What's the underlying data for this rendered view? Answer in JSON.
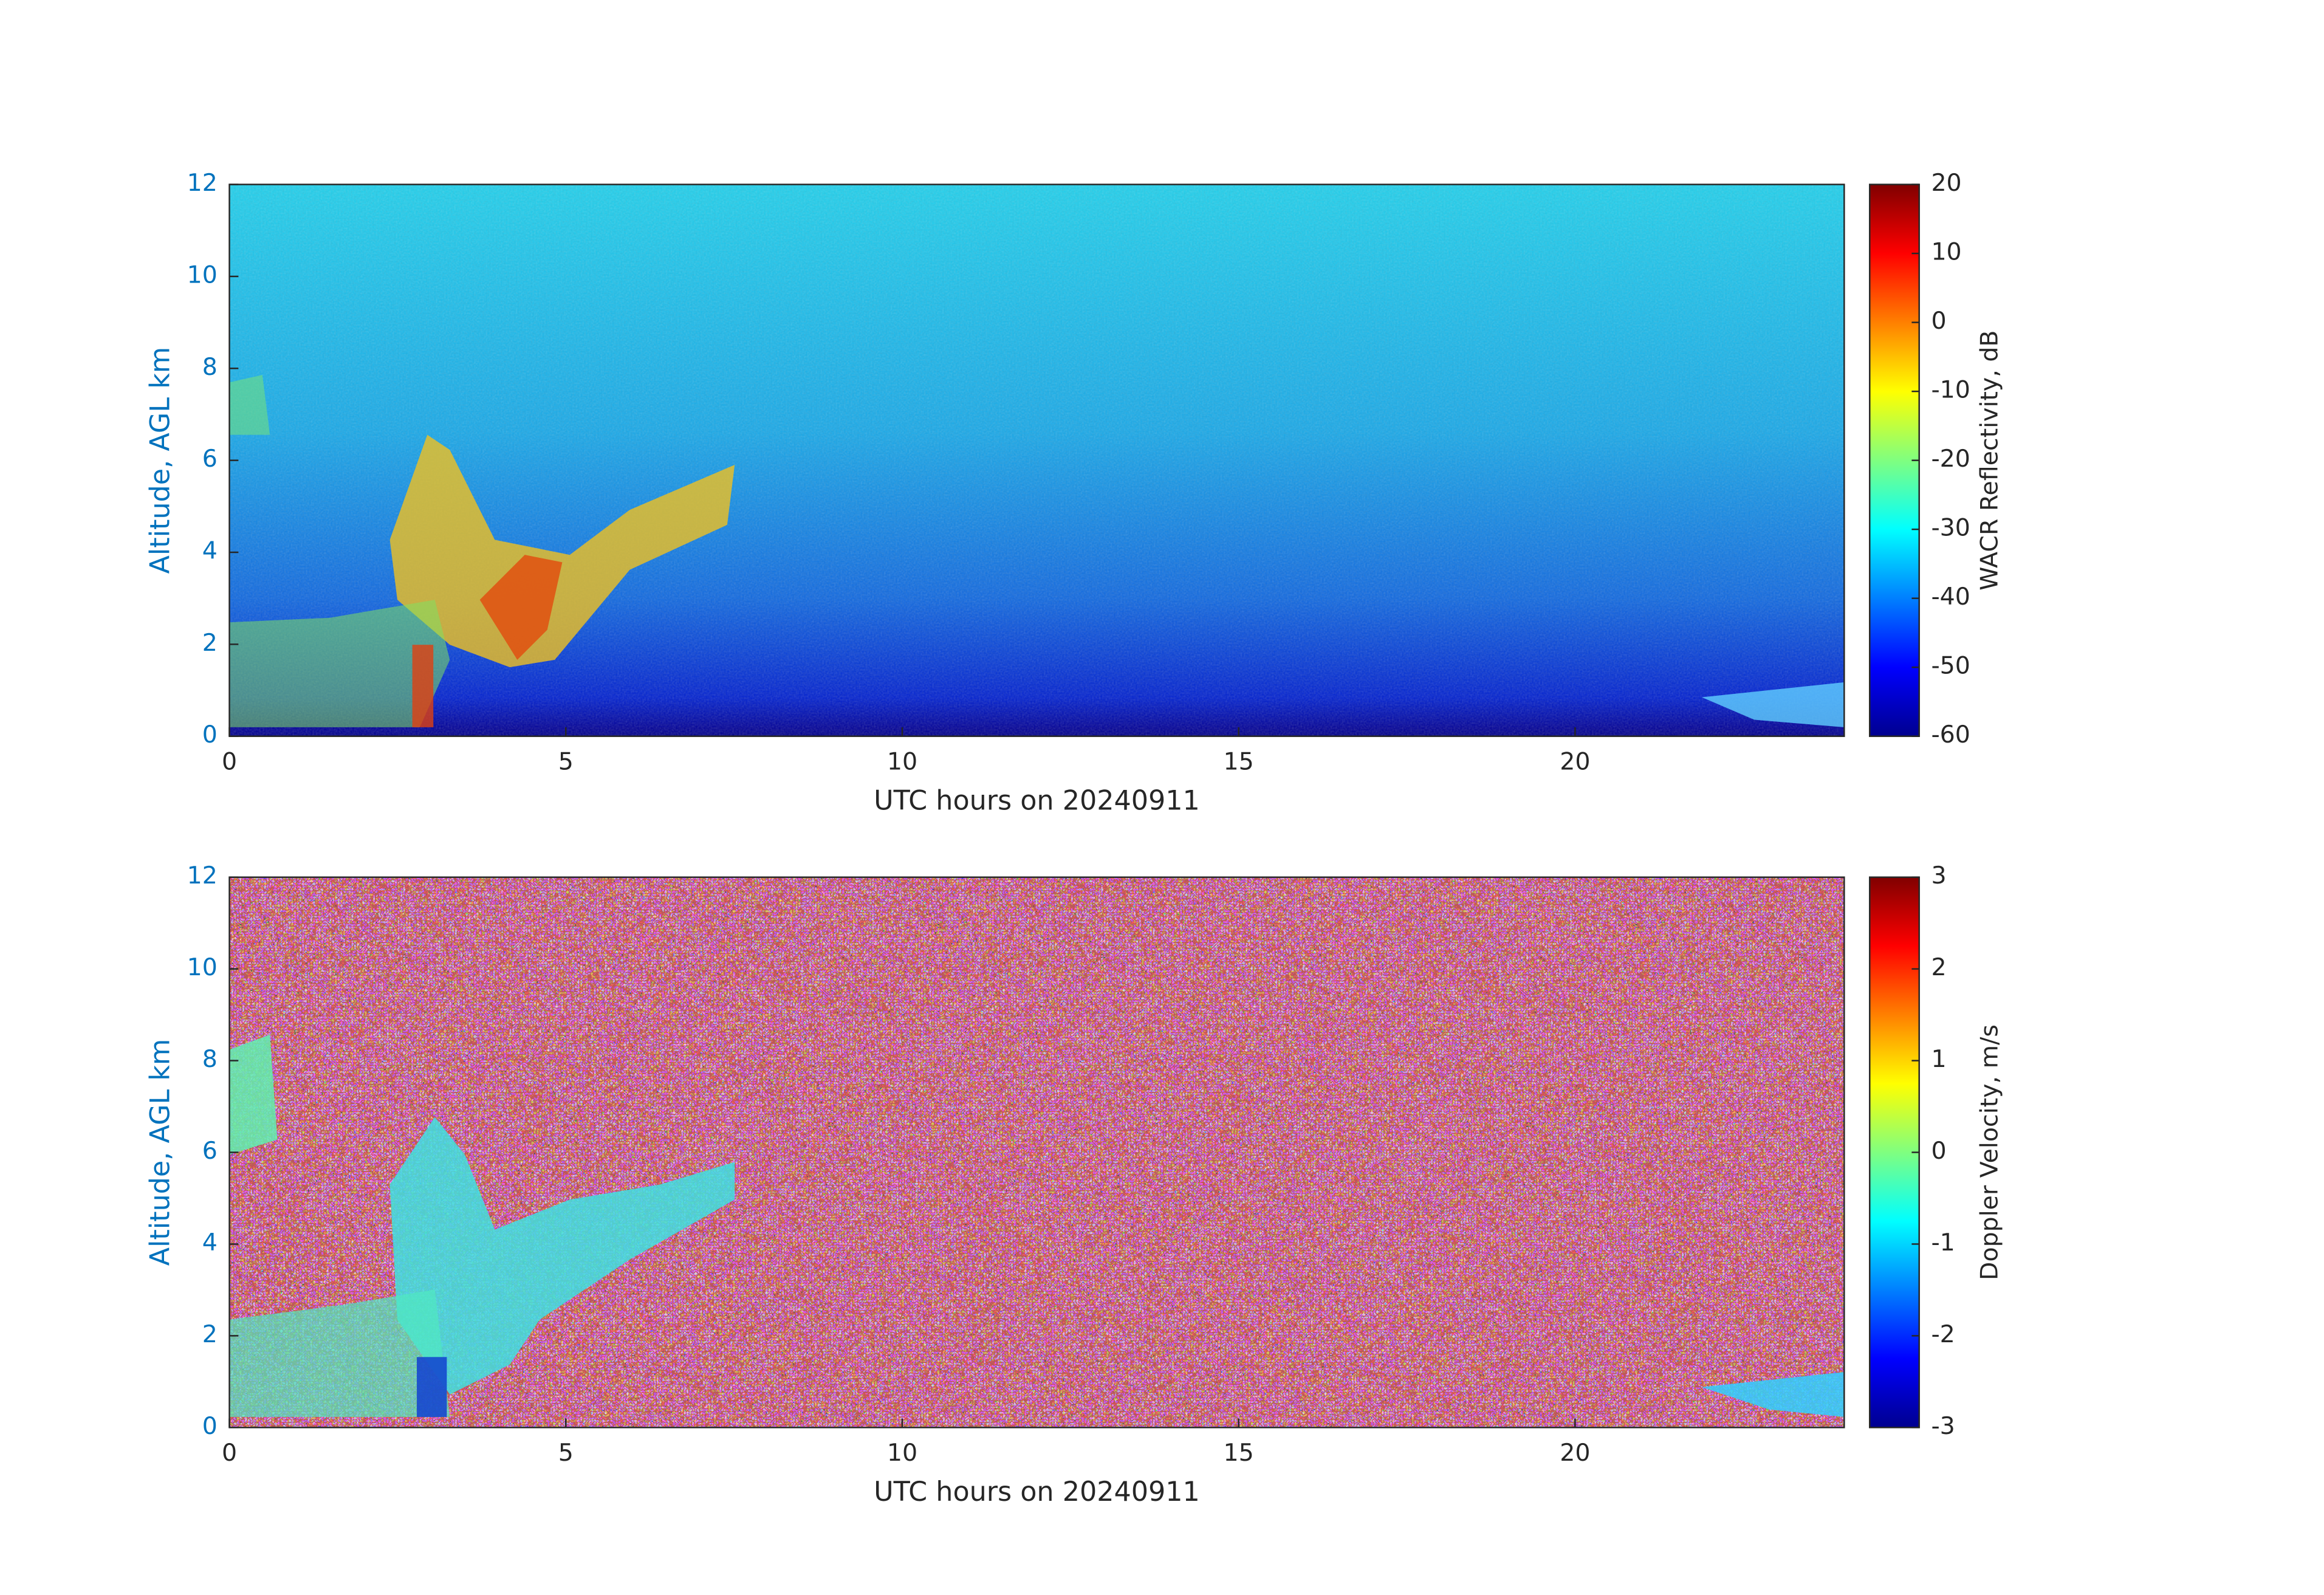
{
  "chart_data": [
    {
      "type": "heatmap",
      "xlabel": "UTC hours on 20240911",
      "ylabel": "Altitude, AGL km",
      "xlim": [
        0,
        24
      ],
      "xticks": [
        0,
        5,
        10,
        15,
        20
      ],
      "ylim": [
        0,
        12
      ],
      "yticks": [
        0,
        2,
        4,
        6,
        8,
        10,
        12
      ],
      "colormap": "jet",
      "clim": [
        -60,
        20
      ],
      "cticks": [
        -60,
        -50,
        -40,
        -30,
        -20,
        -10,
        0,
        10,
        20
      ],
      "clabel": "WACR Reflectivity, dB"
    },
    {
      "type": "heatmap",
      "xlabel": "UTC hours on 20240911",
      "ylabel": "Altitude, AGL km",
      "xlim": [
        0,
        24
      ],
      "xticks": [
        0,
        5,
        10,
        15,
        20
      ],
      "ylim": [
        0,
        12
      ],
      "yticks": [
        0,
        2,
        4,
        6,
        8,
        10,
        12
      ],
      "colormap": "jet",
      "clim": [
        -3,
        3
      ],
      "cticks": [
        -3,
        -2,
        -1,
        0,
        1,
        2,
        3
      ],
      "clabel": "Doppler Velocity, m/s"
    }
  ]
}
